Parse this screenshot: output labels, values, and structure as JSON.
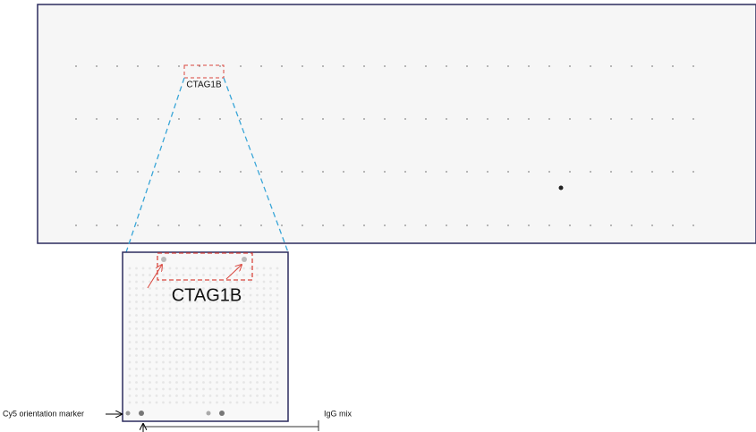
{
  "overview": {
    "label": "CTAG1B"
  },
  "zoom": {
    "label": "CTAG1B"
  },
  "annotations": {
    "orientation_marker": "Cy5 orientation marker",
    "igg_mix": "IgG mix"
  }
}
